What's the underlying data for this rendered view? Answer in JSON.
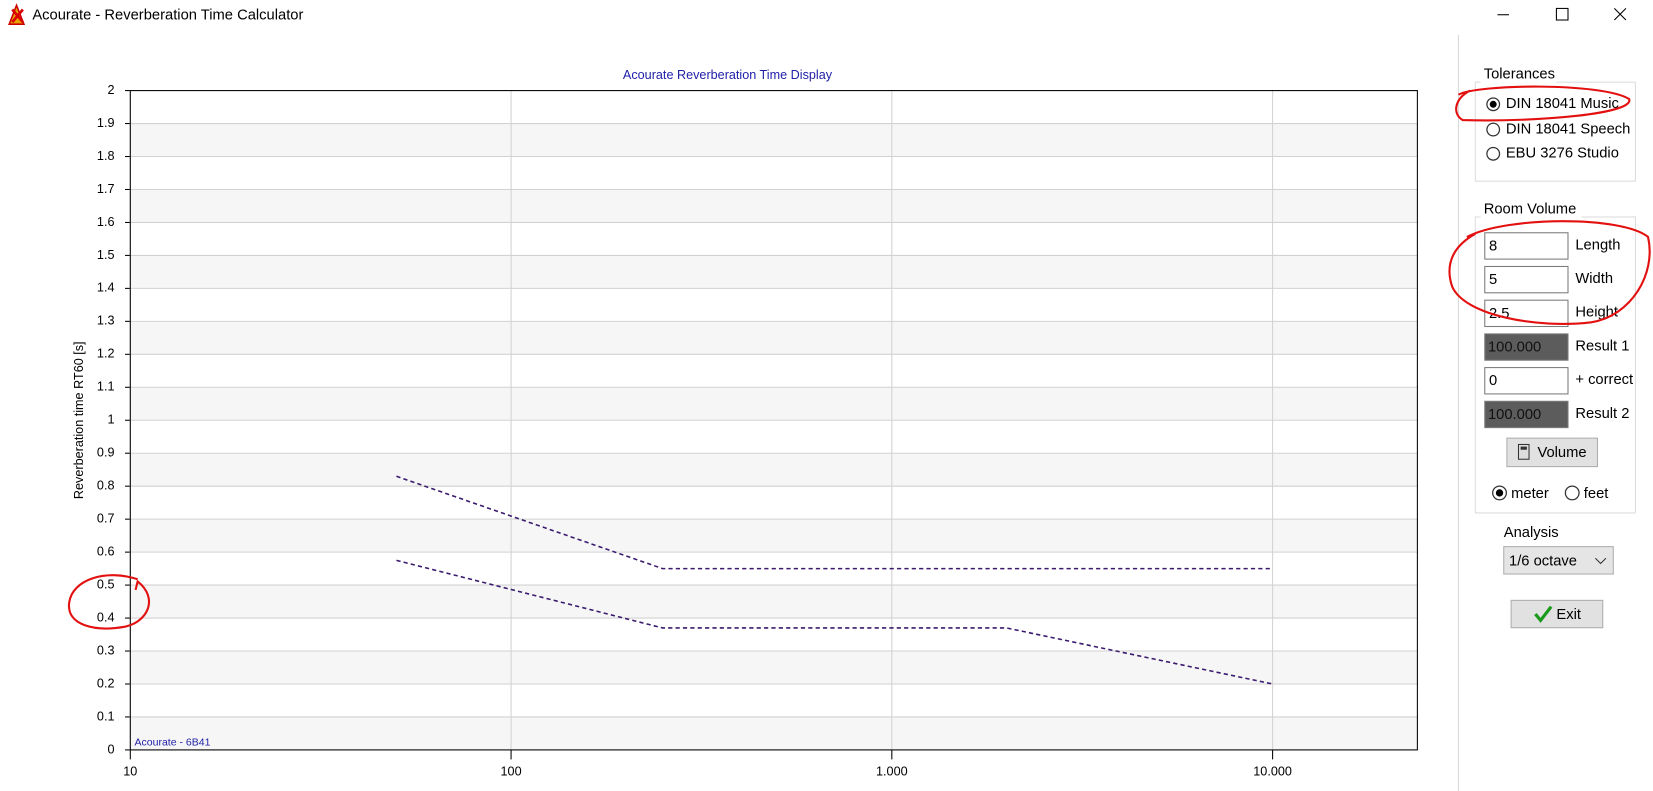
{
  "window": {
    "title": "Acourate - Reverberation Time Calculator"
  },
  "chart_data": {
    "type": "line",
    "title": "Acourate Reverberation Time Display",
    "y_label": "Reverberation time RT60 [s]",
    "annotation": "Acourate - 6B41",
    "x_scale": "log",
    "xlim": [
      10,
      24000
    ],
    "xticks": [
      10,
      100,
      {
        "value": 1000,
        "label": "1.000"
      },
      {
        "value": 10000,
        "label": "10.000"
      }
    ],
    "ylim": [
      0,
      2
    ],
    "yticks": [
      0,
      0.1,
      0.2,
      0.3,
      0.4,
      0.5,
      0.6,
      0.7,
      0.8,
      0.9,
      1,
      1.1,
      1.2,
      1.3,
      1.4,
      1.5,
      1.6,
      1.7,
      1.8,
      1.9,
      2
    ],
    "grid": true,
    "line_style": "dashed",
    "series": [
      {
        "color": "#3b1a6e",
        "x": [
          50,
          250,
          10000
        ],
        "values": [
          0.83,
          0.55,
          0.55
        ]
      },
      {
        "color": "#3b1a6e",
        "x": [
          50,
          250,
          2000,
          10000
        ],
        "values": [
          0.575,
          0.37,
          0.37,
          0.2
        ]
      }
    ]
  },
  "panel": {
    "tolerances": {
      "title": "Tolerances",
      "options": [
        "DIN 18041 Music",
        "DIN 18041 Speech",
        "EBU 3276 Studio"
      ]
    },
    "room_volume": {
      "title": "Room Volume",
      "fields": [
        {
          "value": "8",
          "label": "Length"
        },
        {
          "value": "5",
          "label": "Width"
        },
        {
          "value": "2.5",
          "label": "Height"
        },
        {
          "value": "100.000",
          "label": "Result 1"
        },
        {
          "value": "0",
          "label": "+ correct"
        },
        {
          "value": "100.000",
          "label": "Result 2"
        }
      ],
      "button": "Volume",
      "units": [
        "meter",
        "feet"
      ]
    },
    "analysis": {
      "label": "Analysis",
      "value": "1/6 octave"
    },
    "exit": "Exit"
  }
}
